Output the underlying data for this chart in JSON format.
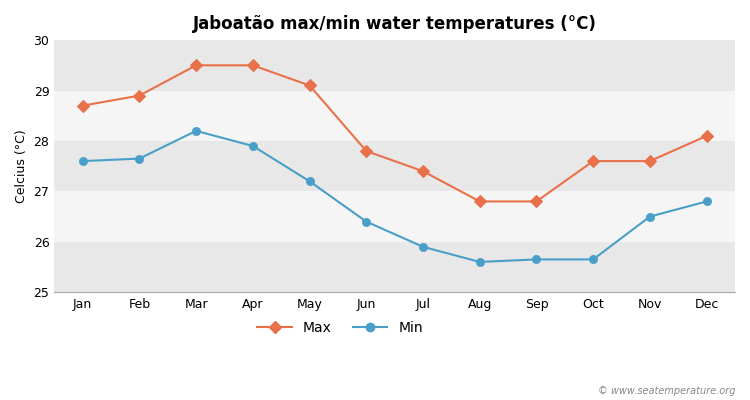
{
  "months": [
    "Jan",
    "Feb",
    "Mar",
    "Apr",
    "May",
    "Jun",
    "Jul",
    "Aug",
    "Sep",
    "Oct",
    "Nov",
    "Dec"
  ],
  "max_temps": [
    28.7,
    28.9,
    29.5,
    29.5,
    29.1,
    27.8,
    27.4,
    26.8,
    26.8,
    27.6,
    27.6,
    28.1
  ],
  "min_temps": [
    27.6,
    27.65,
    28.2,
    27.9,
    27.2,
    26.4,
    25.9,
    25.6,
    25.65,
    25.65,
    26.5,
    26.8
  ],
  "max_color": "#e8714a",
  "min_color": "#4a9fc8",
  "band_color_light": "#e8e8e8",
  "band_color_white": "#f5f5f5",
  "fig_bg": "#ffffff",
  "title": "Jaboatão max/min water temperatures (°C)",
  "ylabel": "Celcius (°C)",
  "ylim": [
    25,
    30
  ],
  "yticks": [
    25,
    26,
    27,
    28,
    29,
    30
  ],
  "watermark": "© www.seatemperature.org",
  "title_fontsize": 12,
  "label_fontsize": 9,
  "tick_fontsize": 9
}
